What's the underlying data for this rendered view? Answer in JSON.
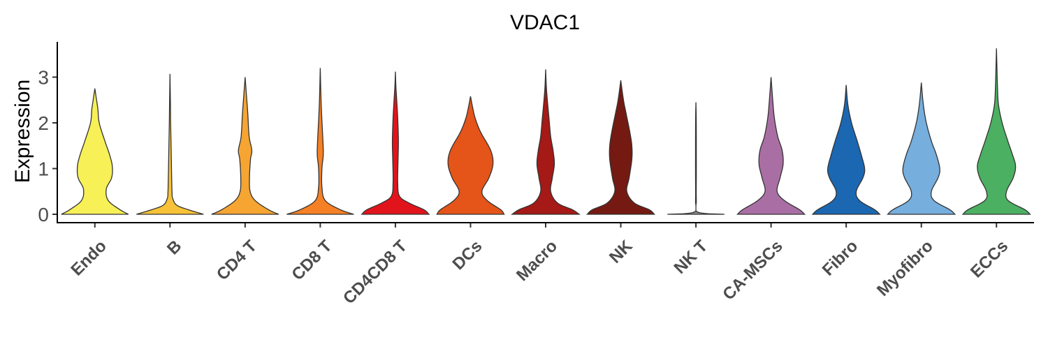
{
  "chart_data": {
    "type": "violin",
    "title": "VDAC1",
    "xlabel": "",
    "ylabel": "Expression",
    "yticks": [
      0,
      1,
      2,
      3
    ],
    "ylim": [
      -0.2,
      3.8
    ],
    "grid": false,
    "legend": "none",
    "categories": [
      "Endo",
      "B",
      "CD4 T",
      "CD8 T",
      "CD4CD8 T",
      "DCs",
      "Macro",
      "NK",
      "NK T",
      "CA-MSCs",
      "Fibro",
      "Myofibro",
      "ECCs"
    ],
    "colors": [
      "#f7f057",
      "#f7c237",
      "#f6a532",
      "#f58025",
      "#e2141b",
      "#e55419",
      "#a51916",
      "#741a12",
      "#8b8b8b",
      "#a96fa4",
      "#1b67b2",
      "#76aedd",
      "#4bb062"
    ],
    "max_values": [
      2.75,
      3.07,
      3.0,
      3.2,
      3.12,
      2.58,
      3.17,
      2.93,
      2.45,
      3.0,
      2.83,
      2.88,
      3.63
    ],
    "distributions": [
      [
        [
          0,
          1.0
        ],
        [
          0.1,
          0.75
        ],
        [
          0.3,
          0.4
        ],
        [
          0.55,
          0.34
        ],
        [
          0.8,
          0.5
        ],
        [
          1.05,
          0.52
        ],
        [
          1.3,
          0.44
        ],
        [
          1.6,
          0.3
        ],
        [
          2.0,
          0.13
        ],
        [
          2.3,
          0.09
        ],
        [
          2.55,
          0.04
        ],
        [
          2.75,
          0.0
        ]
      ],
      [
        [
          0,
          1.0
        ],
        [
          0.1,
          0.55
        ],
        [
          0.2,
          0.2
        ],
        [
          0.35,
          0.08
        ],
        [
          0.5,
          0.06
        ],
        [
          0.8,
          0.05
        ],
        [
          1.2,
          0.04
        ],
        [
          1.6,
          0.03
        ],
        [
          2.0,
          0.02
        ],
        [
          2.5,
          0.012
        ],
        [
          3.07,
          0.0
        ]
      ],
      [
        [
          0,
          1.0
        ],
        [
          0.1,
          0.7
        ],
        [
          0.3,
          0.3
        ],
        [
          0.5,
          0.15
        ],
        [
          0.8,
          0.13
        ],
        [
          1.2,
          0.16
        ],
        [
          1.4,
          0.2
        ],
        [
          1.7,
          0.12
        ],
        [
          2.2,
          0.08
        ],
        [
          2.5,
          0.05
        ],
        [
          2.8,
          0.02
        ],
        [
          3.0,
          0.0
        ]
      ],
      [
        [
          0,
          1.0
        ],
        [
          0.1,
          0.6
        ],
        [
          0.3,
          0.15
        ],
        [
          0.6,
          0.05
        ],
        [
          1.0,
          0.05
        ],
        [
          1.3,
          0.09
        ],
        [
          1.6,
          0.08
        ],
        [
          2.2,
          0.04
        ],
        [
          2.6,
          0.02
        ],
        [
          3.2,
          0.0
        ]
      ],
      [
        [
          0,
          1.0
        ],
        [
          0.1,
          0.85
        ],
        [
          0.25,
          0.4
        ],
        [
          0.4,
          0.12
        ],
        [
          0.7,
          0.07
        ],
        [
          1.2,
          0.08
        ],
        [
          1.6,
          0.09
        ],
        [
          2.1,
          0.07
        ],
        [
          2.5,
          0.04
        ],
        [
          2.8,
          0.015
        ],
        [
          3.12,
          0.0
        ]
      ],
      [
        [
          0,
          1.0
        ],
        [
          0.1,
          0.9
        ],
        [
          0.3,
          0.5
        ],
        [
          0.5,
          0.34
        ],
        [
          0.8,
          0.55
        ],
        [
          1.1,
          0.67
        ],
        [
          1.4,
          0.6
        ],
        [
          1.8,
          0.3
        ],
        [
          2.1,
          0.14
        ],
        [
          2.35,
          0.06
        ],
        [
          2.58,
          0.0
        ]
      ],
      [
        [
          0,
          1.0
        ],
        [
          0.1,
          0.8
        ],
        [
          0.25,
          0.35
        ],
        [
          0.5,
          0.15
        ],
        [
          0.8,
          0.2
        ],
        [
          1.1,
          0.26
        ],
        [
          1.4,
          0.22
        ],
        [
          1.7,
          0.15
        ],
        [
          2.1,
          0.1
        ],
        [
          2.5,
          0.05
        ],
        [
          2.8,
          0.02
        ],
        [
          3.17,
          0.0
        ]
      ],
      [
        [
          0,
          1.0
        ],
        [
          0.1,
          0.85
        ],
        [
          0.25,
          0.4
        ],
        [
          0.5,
          0.18
        ],
        [
          0.8,
          0.25
        ],
        [
          1.2,
          0.33
        ],
        [
          1.5,
          0.33
        ],
        [
          1.8,
          0.27
        ],
        [
          2.2,
          0.16
        ],
        [
          2.5,
          0.08
        ],
        [
          2.93,
          0.0
        ]
      ],
      [
        [
          0,
          0.85
        ],
        [
          0.05,
          0.05
        ],
        [
          0.3,
          0.012
        ],
        [
          1.0,
          0.012
        ],
        [
          2.0,
          0.01
        ],
        [
          2.45,
          0.0
        ]
      ],
      [
        [
          0,
          1.0
        ],
        [
          0.1,
          0.85
        ],
        [
          0.3,
          0.4
        ],
        [
          0.5,
          0.18
        ],
        [
          0.8,
          0.27
        ],
        [
          1.1,
          0.36
        ],
        [
          1.4,
          0.33
        ],
        [
          1.7,
          0.2
        ],
        [
          2.1,
          0.1
        ],
        [
          2.5,
          0.05
        ],
        [
          3.0,
          0.0
        ]
      ],
      [
        [
          0,
          1.0
        ],
        [
          0.1,
          0.85
        ],
        [
          0.3,
          0.4
        ],
        [
          0.5,
          0.3
        ],
        [
          0.8,
          0.5
        ],
        [
          1.0,
          0.55
        ],
        [
          1.3,
          0.45
        ],
        [
          1.6,
          0.33
        ],
        [
          2.0,
          0.16
        ],
        [
          2.4,
          0.05
        ],
        [
          2.83,
          0.0
        ]
      ],
      [
        [
          0,
          1.0
        ],
        [
          0.1,
          0.85
        ],
        [
          0.3,
          0.38
        ],
        [
          0.5,
          0.3
        ],
        [
          0.8,
          0.5
        ],
        [
          1.0,
          0.55
        ],
        [
          1.3,
          0.45
        ],
        [
          1.6,
          0.3
        ],
        [
          2.0,
          0.15
        ],
        [
          2.4,
          0.06
        ],
        [
          2.88,
          0.0
        ]
      ],
      [
        [
          0,
          1.0
        ],
        [
          0.1,
          0.85
        ],
        [
          0.3,
          0.35
        ],
        [
          0.5,
          0.3
        ],
        [
          0.8,
          0.5
        ],
        [
          1.05,
          0.57
        ],
        [
          1.3,
          0.48
        ],
        [
          1.6,
          0.34
        ],
        [
          2.0,
          0.17
        ],
        [
          2.4,
          0.06
        ],
        [
          2.8,
          0.03
        ],
        [
          3.2,
          0.015
        ],
        [
          3.63,
          0.0
        ]
      ]
    ]
  }
}
